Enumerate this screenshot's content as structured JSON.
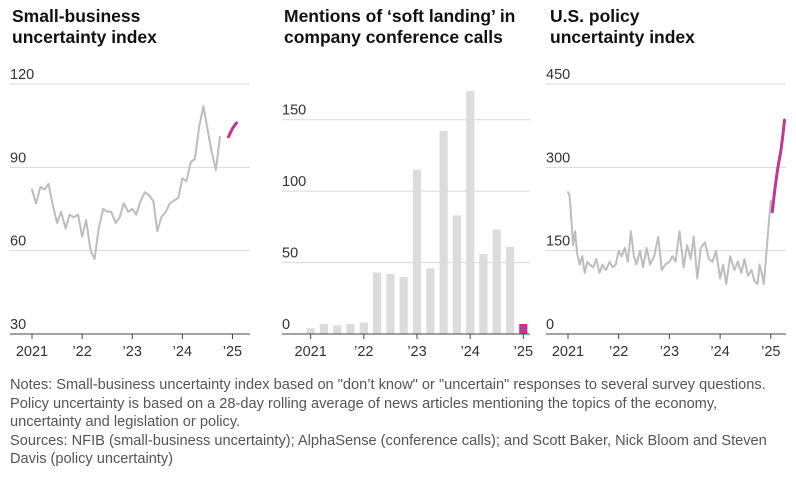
{
  "chart_data": [
    {
      "type": "line",
      "title": [
        "Small-business",
        "uncertainty index"
      ],
      "ylim": [
        30,
        120
      ],
      "yticks": [
        {
          "value": 120,
          "label": "120"
        },
        {
          "value": 90,
          "label": "90"
        },
        {
          "value": 60,
          "label": "60"
        },
        {
          "value": 30,
          "label": "30"
        }
      ],
      "xlim": [
        2021,
        2025.35
      ],
      "xticks": [
        {
          "value": 2021,
          "label": "2021"
        },
        {
          "value": 2022,
          "label": "’22"
        },
        {
          "value": 2023,
          "label": "’23"
        },
        {
          "value": 2024,
          "label": "’24"
        },
        {
          "value": 2025,
          "label": "’25"
        }
      ],
      "grid": true,
      "series": [
        {
          "color": "#bdbdbd",
          "x": [
            2021.0,
            2021.08,
            2021.17,
            2021.25,
            2021.33,
            2021.42,
            2021.5,
            2021.58,
            2021.67,
            2021.75,
            2021.83,
            2021.92,
            2022.0,
            2022.08,
            2022.17,
            2022.25,
            2022.33,
            2022.42,
            2022.5,
            2022.58,
            2022.67,
            2022.75,
            2022.83,
            2022.92,
            2023.0,
            2023.08,
            2023.17,
            2023.25,
            2023.33,
            2023.42,
            2023.5,
            2023.58,
            2023.67,
            2023.75,
            2023.83,
            2023.92,
            2024.0,
            2024.08,
            2024.17,
            2024.25,
            2024.33,
            2024.42,
            2024.5,
            2024.58,
            2024.67,
            2024.75,
            2024.83,
            2024.92,
            2025.0
          ],
          "y": [
            82,
            77,
            83,
            82,
            84,
            76,
            70,
            74,
            68,
            73,
            72,
            73,
            65,
            71,
            60,
            57,
            68,
            75,
            74,
            74,
            70,
            72,
            77,
            74,
            75,
            73,
            78,
            81,
            80,
            78,
            67,
            72,
            74,
            77,
            78,
            79,
            86,
            85,
            92,
            93,
            104,
            112,
            104,
            96,
            89,
            101,
            null,
            null,
            null
          ]
        },
        {
          "color": "#c2378f",
          "x": [
            2024.92,
            2025.0,
            2025.08
          ],
          "y": [
            101,
            104,
            106
          ]
        }
      ]
    },
    {
      "type": "bar",
      "title": [
        "Mentions of ‘soft landing’ in",
        "company conference calls"
      ],
      "ylim": [
        0,
        175
      ],
      "yticks": [
        {
          "value": 150,
          "label": "150"
        },
        {
          "value": 100,
          "label": "100"
        },
        {
          "value": 50,
          "label": "50"
        },
        {
          "value": 0,
          "label": "0"
        }
      ],
      "xlim": [
        2020.875,
        2025.125
      ],
      "xticks": [
        {
          "value": 2021,
          "label": "2021"
        },
        {
          "value": 2022,
          "label": "’22"
        },
        {
          "value": 2023,
          "label": "’23"
        },
        {
          "value": 2024,
          "label": "’24"
        },
        {
          "value": 2025,
          "label": "’25"
        }
      ],
      "grid": true,
      "x": [
        2021.0,
        2021.25,
        2021.5,
        2021.75,
        2022.0,
        2022.25,
        2022.5,
        2022.75,
        2023.0,
        2023.25,
        2023.5,
        2023.75,
        2024.0,
        2024.25,
        2024.5,
        2024.75,
        2025.0
      ],
      "values": [
        4,
        7,
        6,
        7,
        8,
        43,
        42,
        40,
        115,
        46,
        142,
        83,
        170,
        56,
        73,
        61,
        7
      ],
      "colors": [
        "#dcdcdc",
        "#dcdcdc",
        "#dcdcdc",
        "#dcdcdc",
        "#dcdcdc",
        "#dcdcdc",
        "#dcdcdc",
        "#dcdcdc",
        "#dcdcdc",
        "#dcdcdc",
        "#dcdcdc",
        "#dcdcdc",
        "#dcdcdc",
        "#dcdcdc",
        "#dcdcdc",
        "#dcdcdc",
        "#c2378f"
      ]
    },
    {
      "type": "line",
      "title": [
        "U.S. policy",
        "uncertainty index"
      ],
      "ylim": [
        0,
        450
      ],
      "yticks": [
        {
          "value": 450,
          "label": "450"
        },
        {
          "value": 300,
          "label": "300"
        },
        {
          "value": 150,
          "label": "150"
        },
        {
          "value": 0,
          "label": "0"
        }
      ],
      "xlim": [
        2021,
        2025.3
      ],
      "xticks": [
        {
          "value": 2021,
          "label": "2021"
        },
        {
          "value": 2022,
          "label": "’22"
        },
        {
          "value": 2023,
          "label": "’23"
        },
        {
          "value": 2024,
          "label": "’24"
        },
        {
          "value": 2025,
          "label": "’25"
        }
      ],
      "grid": true,
      "series": [
        {
          "color": "#bdbdbd",
          "x": [
            2021.0,
            2021.03,
            2021.06,
            2021.1,
            2021.14,
            2021.18,
            2021.23,
            2021.28,
            2021.33,
            2021.38,
            2021.43,
            2021.5,
            2021.56,
            2021.62,
            2021.68,
            2021.75,
            2021.82,
            2021.88,
            2021.94,
            2022.0,
            2022.06,
            2022.12,
            2022.18,
            2022.24,
            2022.3,
            2022.35,
            2022.42,
            2022.48,
            2022.55,
            2022.62,
            2022.7,
            2022.78,
            2022.85,
            2022.92,
            2023.0,
            2023.06,
            2023.12,
            2023.2,
            2023.28,
            2023.35,
            2023.42,
            2023.48,
            2023.55,
            2023.62,
            2023.7,
            2023.78,
            2023.85,
            2023.92,
            2024.0,
            2024.06,
            2024.12,
            2024.2,
            2024.28,
            2024.35,
            2024.42,
            2024.48,
            2024.55,
            2024.62,
            2024.68,
            2024.74,
            2024.78,
            2024.82,
            2024.86,
            2024.9,
            2024.94,
            2024.97,
            2025.0,
            2025.03,
            2025.06
          ],
          "y": [
            255,
            250,
            215,
            160,
            185,
            145,
            125,
            140,
            110,
            130,
            125,
            120,
            135,
            110,
            125,
            115,
            130,
            120,
            125,
            150,
            140,
            155,
            130,
            185,
            140,
            125,
            150,
            120,
            155,
            125,
            140,
            175,
            115,
            125,
            130,
            140,
            130,
            185,
            120,
            160,
            135,
            175,
            100,
            155,
            165,
            135,
            130,
            150,
            100,
            125,
            90,
            140,
            115,
            130,
            110,
            135,
            105,
            115,
            95,
            90,
            125,
            110,
            90,
            130,
            175,
            210,
            240,
            220,
            230
          ]
        },
        {
          "color": "#c2378f",
          "x": [
            2025.03,
            2025.08,
            2025.14,
            2025.2,
            2025.24,
            2025.27
          ],
          "y": [
            220,
            260,
            300,
            330,
            360,
            385
          ]
        }
      ]
    }
  ],
  "notes": {
    "line1": "Notes: Small-business uncertainty index based on \"don’t know\" or \"uncertain\" responses to several survey questions. Policy uncertainty is based on a  28-day rolling average of news articles mentioning the topics of the economy, uncertainty and legislation or policy.",
    "line2": "Sources: NFIB (small-business uncertainty); AlphaSense (conference calls); and Scott Baker, Nick Bloom and Steven Davis (policy uncertainty)"
  }
}
